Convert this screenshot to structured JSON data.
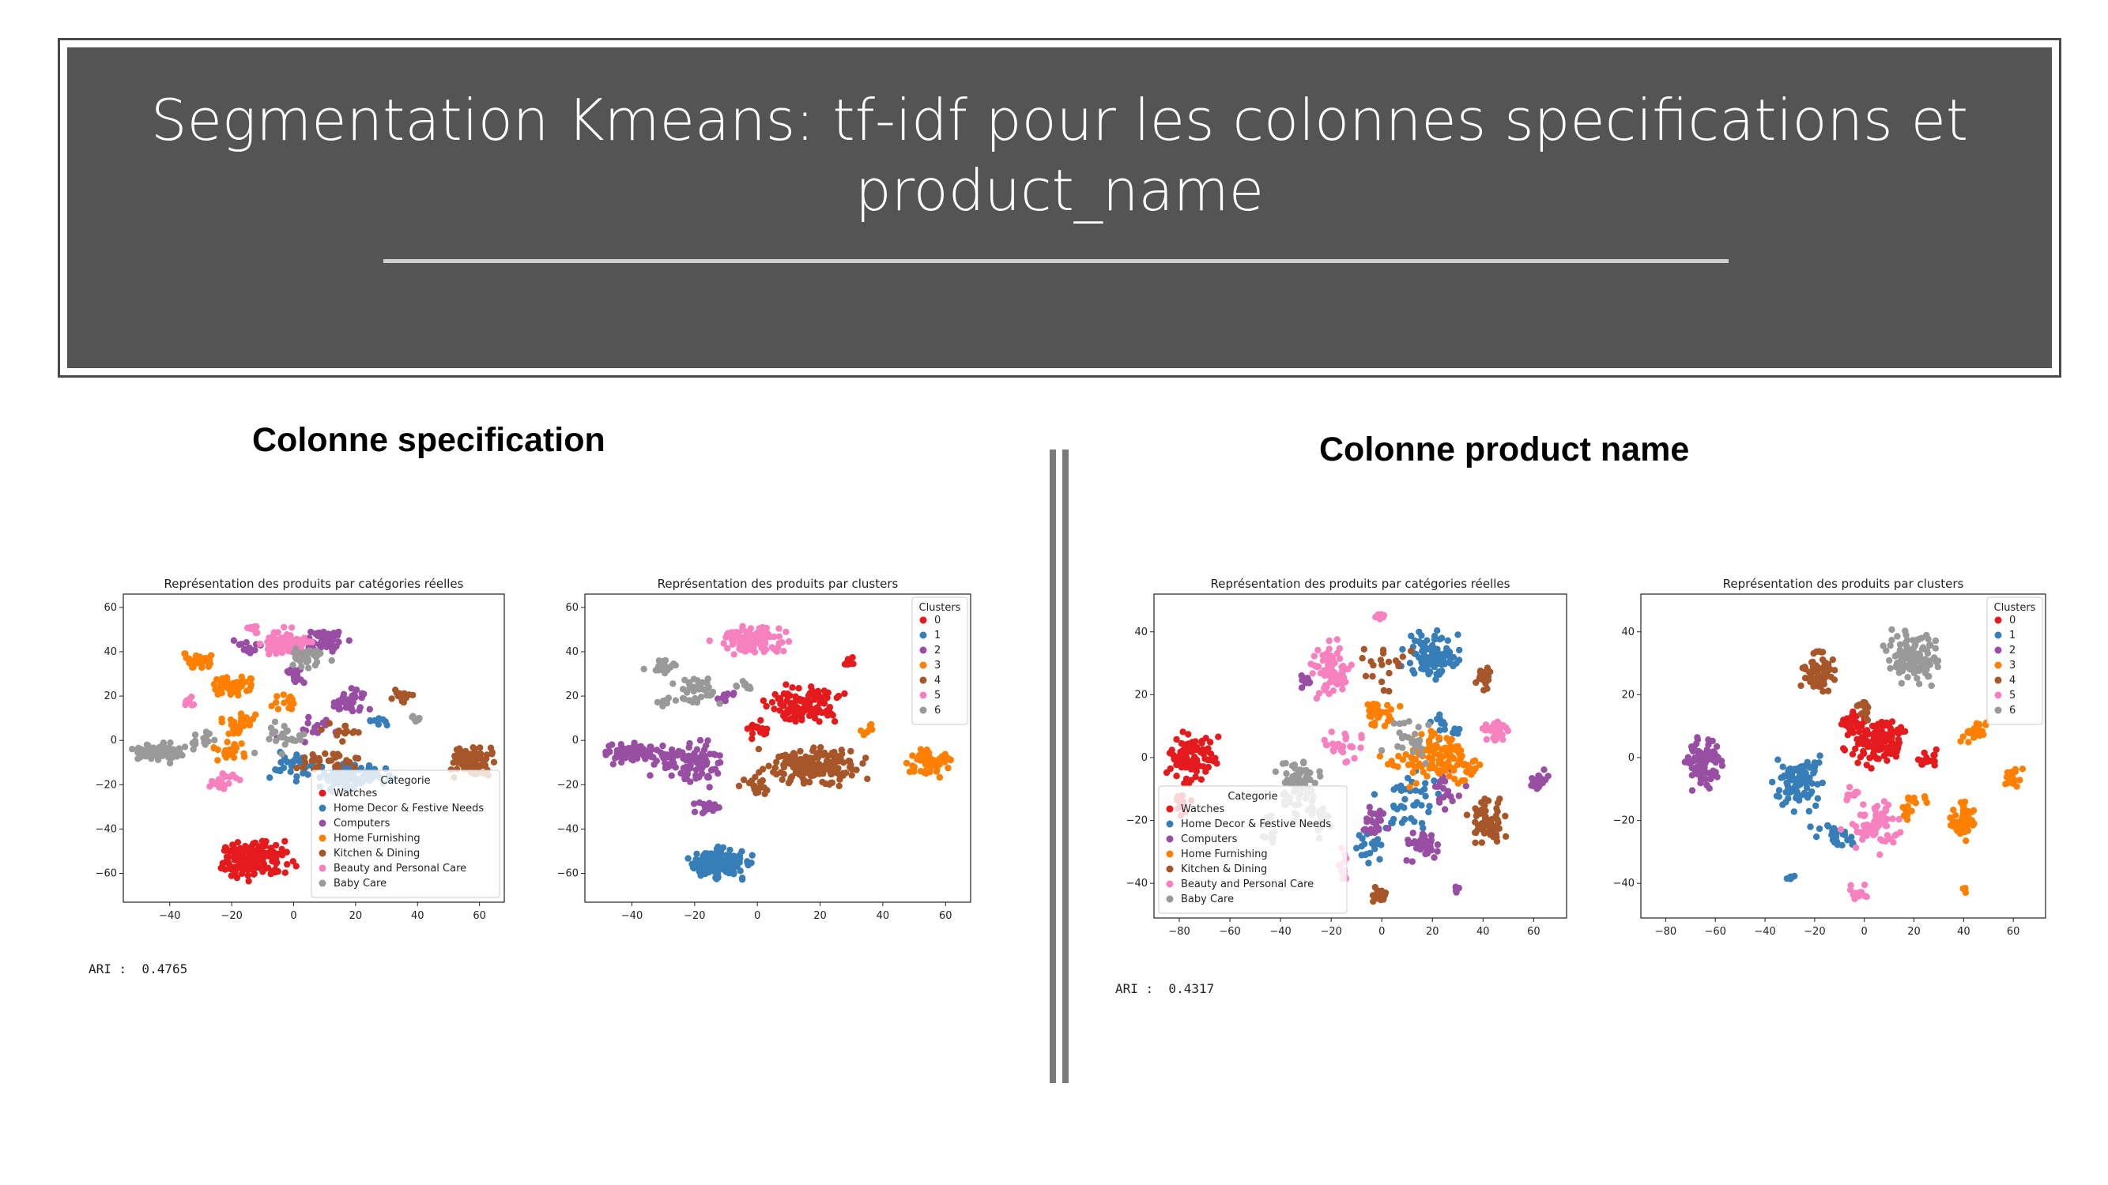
{
  "slide": {
    "title_line1": "Segmentation Kmeans: tf-idf pour les colonnes specifications et",
    "title_line2": "product_name",
    "section_left": "Colonne specification",
    "section_right": "Colonne product name",
    "ari_left": "ARI :  0.4765",
    "ari_right": "ARI :  0.4317"
  },
  "colors": {
    "header_bg": "#545454",
    "title_text": "#ffffff",
    "cluster_palette": [
      "#e41a1c",
      "#377eb8",
      "#984ea3",
      "#ff7f00",
      "#a65628",
      "#f781bf",
      "#999999"
    ]
  },
  "chart_data": [
    {
      "type": "scatter",
      "title": "Représentation des produits par catégories réelles",
      "xlim": [
        -55,
        68
      ],
      "ylim": [
        -73,
        66
      ],
      "xticks": [
        -40,
        -20,
        0,
        20,
        40,
        60
      ],
      "yticks": [
        -60,
        -40,
        -20,
        0,
        20,
        40,
        60
      ],
      "legend": {
        "title": "Categorie",
        "placement": "lower-right",
        "labels": [
          "Watches",
          "Home Decor & Festive Needs",
          "Computers",
          "Home Furnishing",
          "Kitchen & Dining",
          "Beauty and Personal Care",
          "Baby Care"
        ]
      },
      "clusters": [
        {
          "name": "Watches",
          "color": "#e41a1c",
          "blobs": [
            [
              -12,
              -54,
              9,
              7,
              170
            ]
          ]
        },
        {
          "name": "Home Decor & Festive Needs",
          "color": "#377eb8",
          "blobs": [
            [
              20,
              -17,
              10,
              5,
              90
            ],
            [
              0,
              -12,
              7,
              6,
              30
            ],
            [
              28,
              8,
              3,
              2,
              8
            ]
          ]
        },
        {
          "name": "Computers",
          "color": "#984ea3",
          "blobs": [
            [
              10,
              45,
              6,
              5,
              50
            ],
            [
              18,
              18,
              5,
              4,
              35
            ],
            [
              -15,
              42,
              4,
              3,
              15
            ],
            [
              0,
              28,
              3,
              3,
              12
            ],
            [
              5,
              5,
              8,
              5,
              15
            ],
            [
              0,
              32,
              2,
              1,
              10
            ]
          ]
        },
        {
          "name": "Home Furnishing",
          "color": "#ff7f00",
          "blobs": [
            [
              -30,
              36,
              5,
              3,
              40
            ],
            [
              -20,
              24,
              6,
              4,
              50
            ],
            [
              -18,
              8,
              5,
              4,
              30
            ],
            [
              -20,
              -5,
              6,
              4,
              25
            ],
            [
              -2,
              18,
              4,
              4,
              15
            ]
          ]
        },
        {
          "name": "Kitchen & Dining",
          "color": "#a65628",
          "blobs": [
            [
              57,
              -9,
              6,
              6,
              80
            ],
            [
              35,
              20,
              3,
              2,
              20
            ],
            [
              10,
              -9,
              10,
              4,
              30
            ],
            [
              15,
              5,
              5,
              4,
              15
            ]
          ]
        },
        {
          "name": "Beauty and Personal Care",
          "color": "#f781bf",
          "blobs": [
            [
              -3,
              44,
              7,
              5,
              90
            ],
            [
              -13,
              50,
              2,
              2,
              10
            ],
            [
              -34,
              17,
              2,
              2,
              10
            ],
            [
              -22,
              -18,
              5,
              4,
              20
            ]
          ]
        },
        {
          "name": "Baby Care",
          "color": "#999999",
          "blobs": [
            [
              -44,
              -5,
              7,
              4,
              80
            ],
            [
              5,
              37,
              5,
              4,
              30
            ],
            [
              -5,
              0,
              8,
              6,
              25
            ],
            [
              -30,
              0,
              5,
              4,
              15
            ],
            [
              40,
              10,
              2,
              1,
              8
            ]
          ]
        }
      ]
    },
    {
      "type": "scatter",
      "title": "Représentation des produits par clusters",
      "xlim": [
        -55,
        68
      ],
      "ylim": [
        -73,
        66
      ],
      "xticks": [
        -40,
        -20,
        0,
        20,
        40,
        60
      ],
      "yticks": [
        -60,
        -40,
        -20,
        0,
        20,
        40,
        60
      ],
      "legend": {
        "title": "Clusters",
        "placement": "upper-right",
        "labels": [
          "0",
          "1",
          "2",
          "3",
          "4",
          "5",
          "6"
        ]
      },
      "clusters": [
        {
          "name": "0",
          "color": "#e41a1c",
          "blobs": [
            [
              15,
              15,
              10,
              7,
              120
            ],
            [
              0,
              5,
              5,
              3,
              20
            ],
            [
              30,
              36,
              3,
              2,
              8
            ]
          ]
        },
        {
          "name": "1",
          "color": "#377eb8",
          "blobs": [
            [
              -12,
              -56,
              8,
              6,
              160
            ]
          ]
        },
        {
          "name": "2",
          "color": "#984ea3",
          "blobs": [
            [
              -40,
              -5,
              8,
              4,
              70
            ],
            [
              -20,
              -10,
              10,
              8,
              90
            ],
            [
              -10,
              20,
              3,
              3,
              10
            ],
            [
              -15,
              -30,
              5,
              3,
              15
            ]
          ]
        },
        {
          "name": "3",
          "color": "#ff7f00",
          "blobs": [
            [
              55,
              -10,
              6,
              5,
              55
            ],
            [
              35,
              5,
              3,
              2,
              8
            ]
          ]
        },
        {
          "name": "4",
          "color": "#a65628",
          "blobs": [
            [
              18,
              -12,
              12,
              7,
              180
            ],
            [
              0,
              -20,
              5,
              5,
              20
            ]
          ]
        },
        {
          "name": "5",
          "color": "#f781bf",
          "blobs": [
            [
              -2,
              45,
              9,
              5,
              110
            ]
          ]
        },
        {
          "name": "6",
          "color": "#999999",
          "blobs": [
            [
              -30,
              33,
              4,
              3,
              25
            ],
            [
              -20,
              22,
              6,
              5,
              45
            ],
            [
              -5,
              25,
              3,
              2,
              8
            ],
            [
              -30,
              17,
              3,
              2,
              8
            ]
          ]
        }
      ]
    },
    {
      "type": "scatter",
      "title": "Représentation des produits par catégories réelles",
      "xlim": [
        -90,
        73
      ],
      "ylim": [
        -51,
        52
      ],
      "xticks": [
        -80,
        -60,
        -40,
        -20,
        0,
        20,
        40,
        60
      ],
      "yticks": [
        -40,
        -20,
        0,
        20,
        40
      ],
      "legend": {
        "title": "Categorie",
        "placement": "lower-left",
        "labels": [
          "Watches",
          "Home Decor & Festive Needs",
          "Computers",
          "Home Furnishing",
          "Kitchen & Dining",
          "Beauty and Personal Care",
          "Baby Care"
        ]
      },
      "clusters": [
        {
          "name": "Watches",
          "color": "#e41a1c",
          "blobs": [
            [
              -75,
              0,
              8,
              6,
              110
            ],
            [
              -80,
              -15,
              3,
              3,
              15
            ]
          ]
        },
        {
          "name": "Home Decor & Festive Needs",
          "color": "#377eb8",
          "blobs": [
            [
              20,
              32,
              9,
              6,
              100
            ],
            [
              10,
              -15,
              12,
              8,
              40
            ],
            [
              25,
              10,
              5,
              4,
              15
            ],
            [
              -5,
              -28,
              6,
              4,
              20
            ]
          ]
        },
        {
          "name": "Computers",
          "color": "#984ea3",
          "blobs": [
            [
              -3,
              -20,
              4,
              4,
              25
            ],
            [
              15,
              -28,
              7,
              4,
              35
            ],
            [
              62,
              -7,
              3,
              3,
              20
            ],
            [
              25,
              -10,
              6,
              5,
              20
            ],
            [
              30,
              -42,
              2,
              1,
              5
            ],
            [
              -30,
              25,
              2,
              2,
              10
            ]
          ]
        },
        {
          "name": "Home Furnishing",
          "color": "#ff7f00",
          "blobs": [
            [
              22,
              0,
              9,
              7,
              90
            ],
            [
              0,
              15,
              6,
              4,
              30
            ],
            [
              10,
              -2,
              8,
              6,
              20
            ],
            [
              35,
              -3,
              4,
              3,
              15
            ]
          ]
        },
        {
          "name": "Kitchen & Dining",
          "color": "#a65628",
          "blobs": [
            [
              42,
              -20,
              6,
              7,
              60
            ],
            [
              -2,
              -43,
              3,
              2,
              15
            ],
            [
              40,
              25,
              3,
              3,
              20
            ],
            [
              0,
              30,
              10,
              8,
              20
            ]
          ]
        },
        {
          "name": "Beauty and Personal Care",
          "color": "#f781bf",
          "blobs": [
            [
              -20,
              28,
              6,
              7,
              70
            ],
            [
              45,
              8,
              5,
              3,
              25
            ],
            [
              -15,
              3,
              7,
              5,
              25
            ],
            [
              0,
              45,
              4,
              1,
              10
            ],
            [
              -15,
              -35,
              2,
              5,
              12
            ]
          ]
        },
        {
          "name": "Baby Care",
          "color": "#999999",
          "blobs": [
            [
              -32,
              -10,
              7,
              9,
              80
            ],
            [
              10,
              5,
              8,
              5,
              25
            ],
            [
              -45,
              -22,
              4,
              4,
              15
            ],
            [
              -25,
              -20,
              4,
              4,
              15
            ]
          ]
        }
      ]
    },
    {
      "type": "scatter",
      "title": "Représentation des produits par clusters",
      "xlim": [
        -90,
        73
      ],
      "ylim": [
        -51,
        52
      ],
      "xticks": [
        -80,
        -60,
        -40,
        -20,
        0,
        20,
        40,
        60
      ],
      "yticks": [
        -40,
        -20,
        0,
        20,
        40
      ],
      "legend": {
        "title": "Clusters",
        "placement": "upper-right",
        "labels": [
          "0",
          "1",
          "2",
          "3",
          "4",
          "5",
          "6"
        ]
      },
      "clusters": [
        {
          "name": "0",
          "color": "#e41a1c",
          "blobs": [
            [
              5,
              5,
              10,
              6,
              130
            ],
            [
              -5,
              12,
              4,
              3,
              25
            ],
            [
              25,
              0,
              4,
              3,
              15
            ]
          ]
        },
        {
          "name": "1",
          "color": "#377eb8",
          "blobs": [
            [
              -27,
              -8,
              8,
              7,
              90
            ],
            [
              -10,
              -25,
              8,
              4,
              25
            ],
            [
              -30,
              -38,
              2,
              1,
              6
            ]
          ]
        },
        {
          "name": "2",
          "color": "#984ea3",
          "blobs": [
            [
              -65,
              -2,
              7,
              6,
              90
            ]
          ]
        },
        {
          "name": "3",
          "color": "#ff7f00",
          "blobs": [
            [
              40,
              -20,
              4,
              5,
              50
            ],
            [
              60,
              -6,
              3,
              3,
              20
            ],
            [
              45,
              8,
              5,
              3,
              25
            ],
            [
              20,
              -15,
              8,
              4,
              20
            ],
            [
              40,
              -42,
              2,
              1,
              4
            ]
          ]
        },
        {
          "name": "4",
          "color": "#a65628",
          "blobs": [
            [
              -18,
              27,
              6,
              6,
              70
            ],
            [
              0,
              15,
              4,
              3,
              15
            ]
          ]
        },
        {
          "name": "5",
          "color": "#f781bf",
          "blobs": [
            [
              5,
              -22,
              10,
              6,
              70
            ],
            [
              -2,
              -43,
              3,
              2,
              15
            ],
            [
              -5,
              -12,
              3,
              2,
              10
            ]
          ]
        },
        {
          "name": "6",
          "color": "#999999",
          "blobs": [
            [
              20,
              32,
              9,
              7,
              110
            ]
          ]
        }
      ]
    }
  ]
}
